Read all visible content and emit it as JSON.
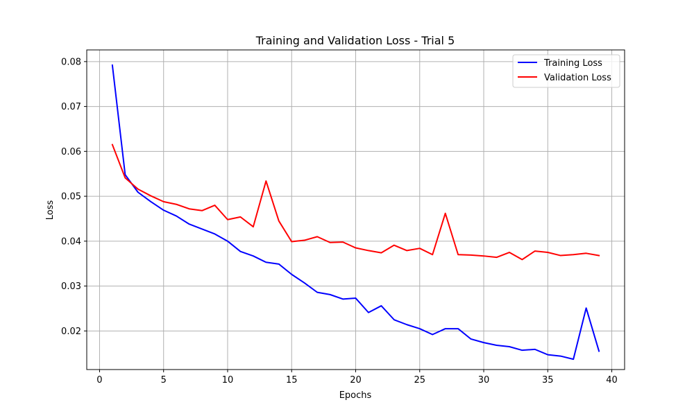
{
  "chart_data": {
    "type": "line",
    "title": "Training and Validation Loss - Trial 5",
    "xlabel": "Epochs",
    "ylabel": "Loss",
    "xlim": [
      -1,
      41
    ],
    "ylim": [
      0.0114,
      0.0826
    ],
    "xticks": [
      0,
      5,
      10,
      15,
      20,
      25,
      30,
      35,
      40
    ],
    "yticks": [
      0.02,
      0.03,
      0.04,
      0.05,
      0.06,
      0.07,
      0.08
    ],
    "ytick_labels": [
      "0.02",
      "0.03",
      "0.04",
      "0.05",
      "0.06",
      "0.07",
      "0.08"
    ],
    "grid": true,
    "legend_position": "top-right",
    "x": [
      1,
      2,
      3,
      4,
      5,
      6,
      7,
      8,
      9,
      10,
      11,
      12,
      13,
      14,
      15,
      16,
      17,
      18,
      19,
      20,
      21,
      22,
      23,
      24,
      25,
      26,
      27,
      28,
      29,
      30,
      31,
      32,
      33,
      34,
      35,
      36,
      37,
      38,
      39
    ],
    "series": [
      {
        "name": "Training Loss",
        "color": "#0000ff",
        "values": [
          0.0792,
          0.0548,
          0.0509,
          0.0488,
          0.0469,
          0.0456,
          0.0438,
          0.0427,
          0.0416,
          0.04,
          0.0377,
          0.0367,
          0.0353,
          0.0349,
          0.0326,
          0.0307,
          0.0286,
          0.0281,
          0.0271,
          0.0273,
          0.0241,
          0.0256,
          0.0225,
          0.0214,
          0.0205,
          0.0192,
          0.0205,
          0.0205,
          0.0182,
          0.0174,
          0.0168,
          0.0165,
          0.0157,
          0.0159,
          0.0147,
          0.0144,
          0.0137,
          0.0251,
          0.0155
        ]
      },
      {
        "name": "Validation Loss",
        "color": "#ff0000",
        "values": [
          0.0615,
          0.0541,
          0.0516,
          0.0501,
          0.0488,
          0.0482,
          0.0472,
          0.0468,
          0.048,
          0.0448,
          0.0454,
          0.0432,
          0.0534,
          0.0445,
          0.0399,
          0.0402,
          0.041,
          0.0397,
          0.0398,
          0.0385,
          0.0379,
          0.0374,
          0.0391,
          0.0379,
          0.0384,
          0.037,
          0.0462,
          0.037,
          0.0369,
          0.0367,
          0.0364,
          0.0375,
          0.0359,
          0.0378,
          0.0375,
          0.0368,
          0.037,
          0.0373,
          0.0368
        ]
      }
    ]
  }
}
